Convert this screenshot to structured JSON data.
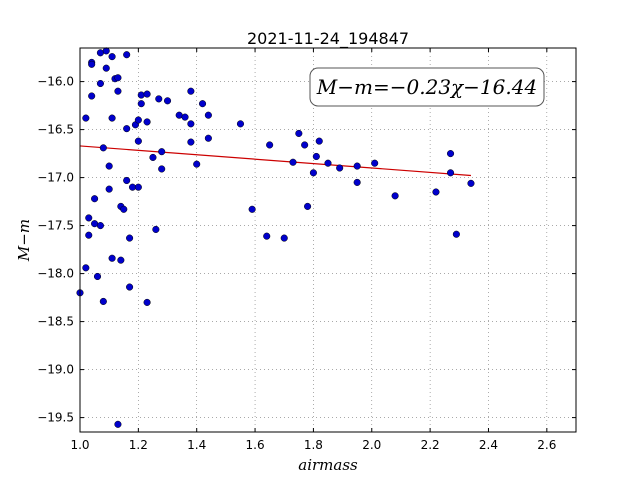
{
  "chart_data": {
    "type": "scatter",
    "title": "2021-11-24_194847",
    "xlabel": "airmass",
    "ylabel": "M−m",
    "xlim": [
      1.0,
      2.7
    ],
    "ylim": [
      -19.65,
      -15.65
    ],
    "y_inverted": true,
    "grid": true,
    "xticks": [
      1.0,
      1.2,
      1.4,
      1.6,
      1.8,
      2.0,
      2.2,
      2.4,
      2.6
    ],
    "xtick_labels": [
      "1.0",
      "1.2",
      "1.4",
      "1.6",
      "1.8",
      "2.0",
      "2.2",
      "2.4",
      "2.6"
    ],
    "yticks": [
      -16.0,
      -16.5,
      -17.0,
      -17.5,
      -18.0,
      -18.5,
      -19.0,
      -19.5
    ],
    "ytick_labels": [
      "−16.0",
      "−16.5",
      "−17.0",
      "−17.5",
      "−18.0",
      "−18.5",
      "−19.0",
      "−19.5"
    ],
    "annotation": "M−m=−0.23χ−16.44",
    "fit": {
      "slope": -0.23,
      "intercept": -16.44,
      "x_range": [
        1.0,
        2.34
      ],
      "color": "#cc0000"
    },
    "point_color": "#0000cc",
    "points": [
      [
        1.0,
        -18.2
      ],
      [
        1.02,
        -16.38
      ],
      [
        1.02,
        -17.94
      ],
      [
        1.03,
        -17.6
      ],
      [
        1.03,
        -17.42
      ],
      [
        1.04,
        -16.15
      ],
      [
        1.04,
        -15.8
      ],
      [
        1.04,
        -15.82
      ],
      [
        1.05,
        -17.48
      ],
      [
        1.05,
        -17.22
      ],
      [
        1.06,
        -18.03
      ],
      [
        1.07,
        -17.5
      ],
      [
        1.07,
        -16.02
      ],
      [
        1.07,
        -15.7
      ],
      [
        1.08,
        -16.69
      ],
      [
        1.08,
        -18.29
      ],
      [
        1.09,
        -15.86
      ],
      [
        1.09,
        -15.68
      ],
      [
        1.1,
        -17.12
      ],
      [
        1.1,
        -16.88
      ],
      [
        1.11,
        -15.74
      ],
      [
        1.11,
        -16.38
      ],
      [
        1.11,
        -17.84
      ],
      [
        1.12,
        -15.97
      ],
      [
        1.13,
        -16.1
      ],
      [
        1.13,
        -15.96
      ],
      [
        1.13,
        -19.57
      ],
      [
        1.14,
        -17.3
      ],
      [
        1.14,
        -17.86
      ],
      [
        1.15,
        -17.33
      ],
      [
        1.16,
        -15.72
      ],
      [
        1.16,
        -17.03
      ],
      [
        1.16,
        -16.49
      ],
      [
        1.17,
        -18.14
      ],
      [
        1.17,
        -17.63
      ],
      [
        1.18,
        -17.1
      ],
      [
        1.19,
        -16.45
      ],
      [
        1.2,
        -17.1
      ],
      [
        1.2,
        -16.62
      ],
      [
        1.2,
        -16.4
      ],
      [
        1.21,
        -16.14
      ],
      [
        1.21,
        -16.23
      ],
      [
        1.23,
        -16.42
      ],
      [
        1.23,
        -18.3
      ],
      [
        1.23,
        -16.13
      ],
      [
        1.25,
        -16.79
      ],
      [
        1.26,
        -17.54
      ],
      [
        1.27,
        -16.18
      ],
      [
        1.28,
        -16.73
      ],
      [
        1.28,
        -16.91
      ],
      [
        1.3,
        -16.2
      ],
      [
        1.34,
        -16.35
      ],
      [
        1.36,
        -16.37
      ],
      [
        1.38,
        -16.1
      ],
      [
        1.38,
        -16.44
      ],
      [
        1.38,
        -16.63
      ],
      [
        1.4,
        -16.86
      ],
      [
        1.42,
        -16.23
      ],
      [
        1.44,
        -16.35
      ],
      [
        1.44,
        -16.59
      ],
      [
        1.55,
        -16.44
      ],
      [
        1.59,
        -17.33
      ],
      [
        1.64,
        -17.61
      ],
      [
        1.65,
        -16.66
      ],
      [
        1.7,
        -17.63
      ],
      [
        1.73,
        -16.84
      ],
      [
        1.75,
        -16.54
      ],
      [
        1.77,
        -16.66
      ],
      [
        1.78,
        -17.3
      ],
      [
        1.8,
        -16.95
      ],
      [
        1.81,
        -16.78
      ],
      [
        1.82,
        -16.62
      ],
      [
        1.85,
        -16.85
      ],
      [
        1.89,
        -16.9
      ],
      [
        1.95,
        -17.05
      ],
      [
        1.95,
        -16.88
      ],
      [
        2.01,
        -16.85
      ],
      [
        2.08,
        -17.19
      ],
      [
        2.22,
        -17.15
      ],
      [
        2.27,
        -16.75
      ],
      [
        2.27,
        -16.95
      ],
      [
        2.29,
        -17.59
      ],
      [
        2.34,
        -17.06
      ]
    ]
  }
}
